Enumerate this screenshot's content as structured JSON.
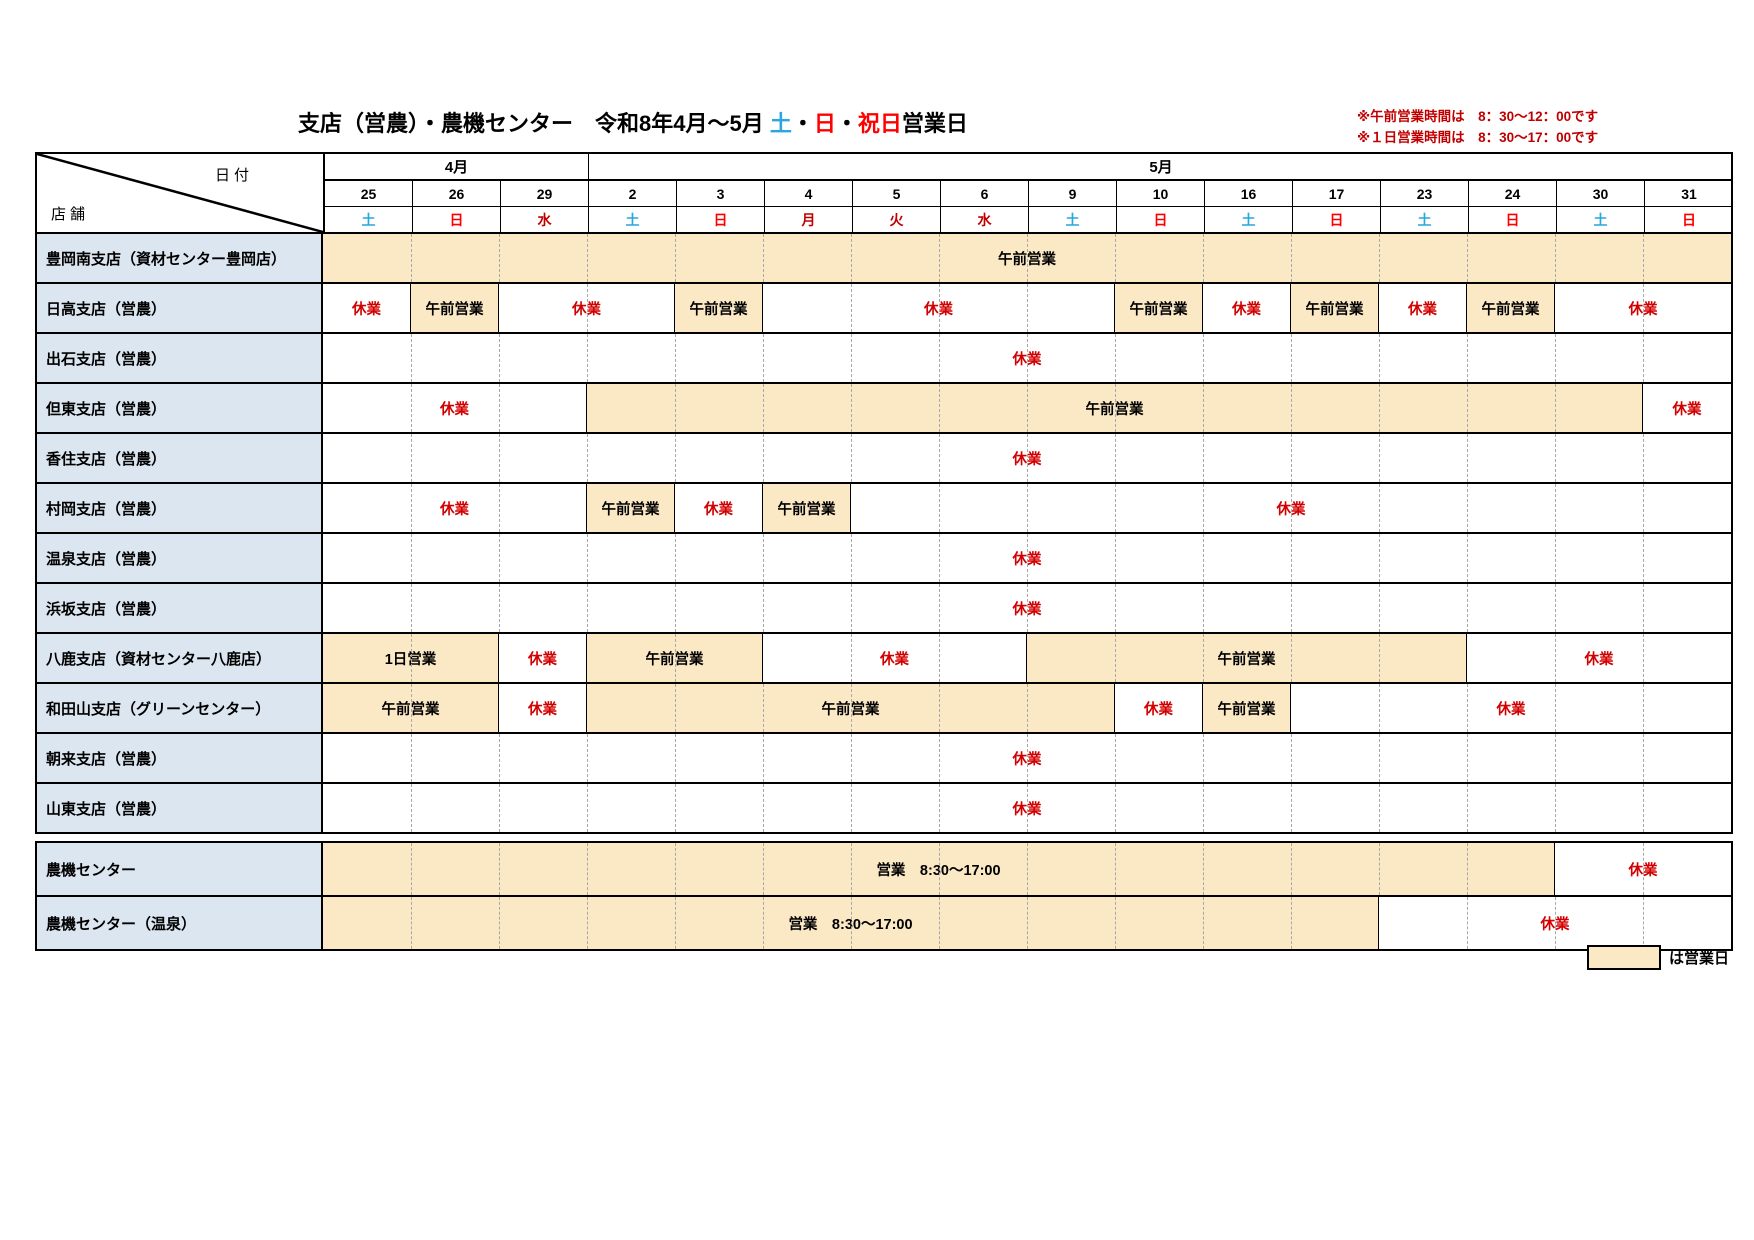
{
  "title": {
    "segments": [
      {
        "text": "支店（営農）・農機センター　令和8年4月～5月 ",
        "cls": "t-black"
      },
      {
        "text": "土",
        "cls": "t-sat"
      },
      {
        "text": "・",
        "cls": "t-black"
      },
      {
        "text": "日",
        "cls": "t-sun"
      },
      {
        "text": "・",
        "cls": "t-black"
      },
      {
        "text": "祝日",
        "cls": "t-sun"
      },
      {
        "text": "営業日",
        "cls": "t-black"
      }
    ]
  },
  "notes": [
    "※午前営業時間は　8：30～12：00です",
    "※１日営業時間は　8：30～17：00です"
  ],
  "corner": {
    "top": "日付",
    "bottom": "店舗"
  },
  "months": [
    {
      "label": "4月",
      "span": 3
    },
    {
      "label": "5月",
      "span": 13
    }
  ],
  "dates": [
    "25",
    "26",
    "29",
    "2",
    "3",
    "4",
    "5",
    "6",
    "9",
    "10",
    "16",
    "17",
    "23",
    "24",
    "30",
    "31"
  ],
  "days": [
    {
      "label": "土",
      "type": "sat"
    },
    {
      "label": "日",
      "type": "sun"
    },
    {
      "label": "水",
      "type": "hol"
    },
    {
      "label": "土",
      "type": "sat"
    },
    {
      "label": "日",
      "type": "sun"
    },
    {
      "label": "月",
      "type": "hol"
    },
    {
      "label": "火",
      "type": "hol"
    },
    {
      "label": "水",
      "type": "hol"
    },
    {
      "label": "土",
      "type": "sat"
    },
    {
      "label": "日",
      "type": "sun"
    },
    {
      "label": "土",
      "type": "sat"
    },
    {
      "label": "日",
      "type": "sun"
    },
    {
      "label": "土",
      "type": "sat"
    },
    {
      "label": "日",
      "type": "sun"
    },
    {
      "label": "土",
      "type": "sat"
    },
    {
      "label": "日",
      "type": "sun"
    }
  ],
  "branch_rows": [
    {
      "store": "豊岡南支店（資材センター豊岡店）",
      "cells": [
        {
          "span": 16,
          "text": "午前営業",
          "type": "open"
        }
      ]
    },
    {
      "store": "日高支店（営農）",
      "cells": [
        {
          "span": 1,
          "text": "休業",
          "type": "closed"
        },
        {
          "span": 1,
          "text": "午前営業",
          "type": "open"
        },
        {
          "span": 2,
          "text": "休業",
          "type": "closed"
        },
        {
          "span": 1,
          "text": "午前営業",
          "type": "open"
        },
        {
          "span": 4,
          "text": "休業",
          "type": "closed"
        },
        {
          "span": 1,
          "text": "午前営業",
          "type": "open"
        },
        {
          "span": 1,
          "text": "休業",
          "type": "closed"
        },
        {
          "span": 1,
          "text": "午前営業",
          "type": "open"
        },
        {
          "span": 1,
          "text": "休業",
          "type": "closed"
        },
        {
          "span": 1,
          "text": "午前営業",
          "type": "open"
        },
        {
          "span": 2,
          "text": "休業",
          "type": "closed"
        }
      ]
    },
    {
      "store": "出石支店（営農）",
      "cells": [
        {
          "span": 16,
          "text": "休業",
          "type": "closed"
        }
      ]
    },
    {
      "store": "但東支店（営農）",
      "cells": [
        {
          "span": 3,
          "text": "休業",
          "type": "closed"
        },
        {
          "span": 12,
          "text": "午前営業",
          "type": "open"
        },
        {
          "span": 1,
          "text": "休業",
          "type": "closed"
        }
      ]
    },
    {
      "store": "香住支店（営農）",
      "cells": [
        {
          "span": 16,
          "text": "休業",
          "type": "closed"
        }
      ]
    },
    {
      "store": "村岡支店（営農）",
      "cells": [
        {
          "span": 3,
          "text": "休業",
          "type": "closed"
        },
        {
          "span": 1,
          "text": "午前営業",
          "type": "open"
        },
        {
          "span": 1,
          "text": "休業",
          "type": "closed"
        },
        {
          "span": 1,
          "text": "午前営業",
          "type": "open"
        },
        {
          "span": 10,
          "text": "休業",
          "type": "closed"
        }
      ]
    },
    {
      "store": "温泉支店（営農）",
      "cells": [
        {
          "span": 16,
          "text": "休業",
          "type": "closed"
        }
      ]
    },
    {
      "store": "浜坂支店（営農）",
      "cells": [
        {
          "span": 16,
          "text": "休業",
          "type": "closed"
        }
      ]
    },
    {
      "store": "八鹿支店（資材センター八鹿店）",
      "cells": [
        {
          "span": 2,
          "text": "1日営業",
          "type": "open"
        },
        {
          "span": 1,
          "text": "休業",
          "type": "closed"
        },
        {
          "span": 2,
          "text": "午前営業",
          "type": "open"
        },
        {
          "span": 3,
          "text": "休業",
          "type": "closed"
        },
        {
          "span": 5,
          "text": "午前営業",
          "type": "open"
        },
        {
          "span": 3,
          "text": "休業",
          "type": "closed"
        }
      ]
    },
    {
      "store": "和田山支店（グリーンセンター）",
      "cells": [
        {
          "span": 2,
          "text": "午前営業",
          "type": "open"
        },
        {
          "span": 1,
          "text": "休業",
          "type": "closed"
        },
        {
          "span": 6,
          "text": "午前営業",
          "type": "open"
        },
        {
          "span": 1,
          "text": "休業",
          "type": "closed"
        },
        {
          "span": 1,
          "text": "午前営業",
          "type": "open"
        },
        {
          "span": 5,
          "text": "休業",
          "type": "closed"
        }
      ]
    },
    {
      "store": "朝来支店（営農）",
      "cells": [
        {
          "span": 16,
          "text": "休業",
          "type": "closed"
        }
      ]
    },
    {
      "store": "山東支店（営農）",
      "cells": [
        {
          "span": 16,
          "text": "休業",
          "type": "closed"
        }
      ]
    }
  ],
  "center_rows": [
    {
      "store": "農機センター",
      "cells": [
        {
          "span": 14,
          "text": "営業　8:30～17:00",
          "type": "open"
        },
        {
          "span": 2,
          "text": "休業",
          "type": "closed"
        }
      ]
    },
    {
      "store": "農機センター（温泉）",
      "cells": [
        {
          "span": 12,
          "text": "営業　8:30～17:00",
          "type": "open"
        },
        {
          "span": 4,
          "text": "休業",
          "type": "closed"
        }
      ]
    }
  ],
  "legend": {
    "label": "は営業日"
  },
  "colors": {
    "beige": "#fbe9c6",
    "label": "#dce6f1",
    "sat": "#2ba6e0",
    "sun": "#ff0000",
    "hol": "#c00000",
    "closed": "#d20000",
    "note": "#c00000"
  }
}
